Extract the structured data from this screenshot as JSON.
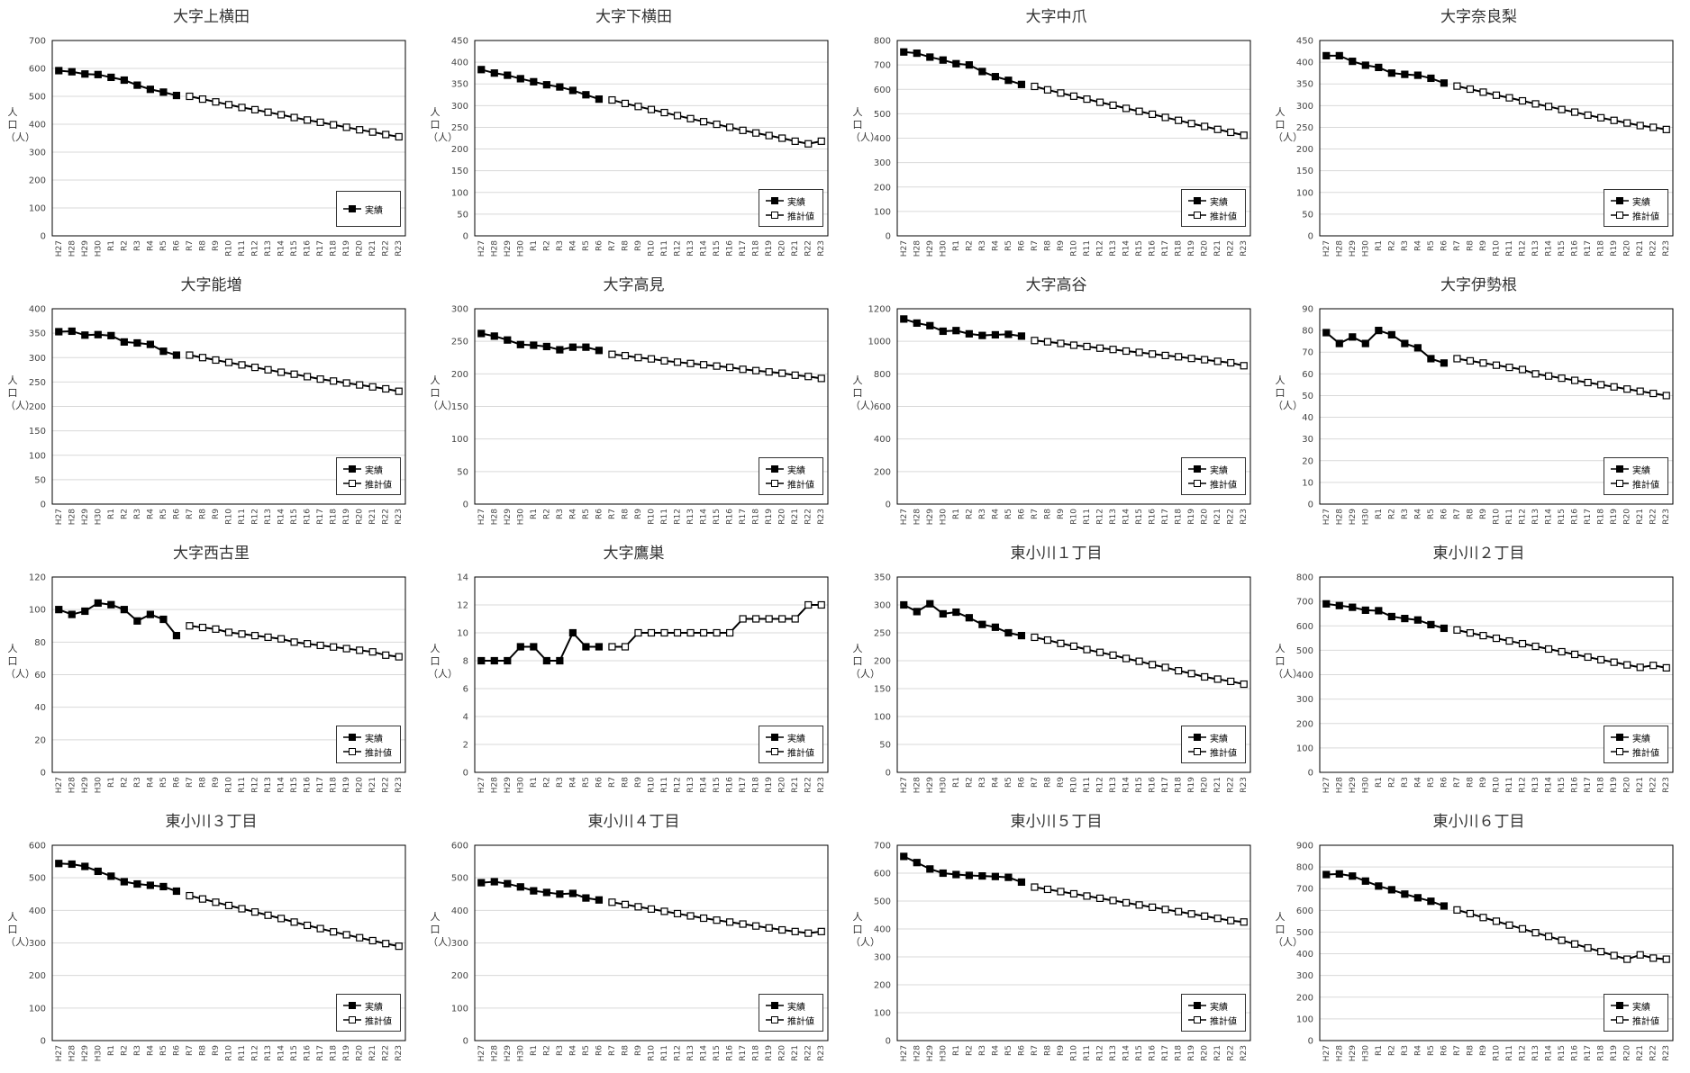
{
  "y_axis_label": "人口（人）",
  "legend": {
    "actual": "実績",
    "forecast": "推計値"
  },
  "categories": [
    "H27",
    "H28",
    "H29",
    "H30",
    "R1",
    "R2",
    "R3",
    "R4",
    "R5",
    "R6",
    "R7",
    "R8",
    "R9",
    "R10",
    "R11",
    "R12",
    "R13",
    "R14",
    "R15",
    "R16",
    "R17",
    "R18",
    "R19",
    "R20",
    "R21",
    "R22",
    "R23"
  ],
  "chart_data": [
    {
      "type": "line",
      "title": "大字上横田",
      "ylim": [
        0,
        700
      ],
      "ystep": 100,
      "legend_items": 1,
      "series": [
        {
          "name": "実績",
          "x_start": 0,
          "values": [
            592,
            588,
            580,
            578,
            568,
            558,
            540,
            525,
            515,
            503
          ]
        },
        {
          "name": "推計値",
          "x_start": 10,
          "values": [
            500,
            490,
            480,
            470,
            460,
            452,
            443,
            434,
            424,
            415,
            407,
            398,
            389,
            380,
            372,
            363,
            355
          ]
        }
      ]
    },
    {
      "type": "line",
      "title": "大字下横田",
      "ylim": [
        0,
        450
      ],
      "ystep": 50,
      "legend_items": 2,
      "series": [
        {
          "name": "実績",
          "x_start": 0,
          "values": [
            383,
            375,
            370,
            362,
            355,
            348,
            343,
            335,
            325,
            315
          ]
        },
        {
          "name": "推計値",
          "x_start": 10,
          "values": [
            313,
            305,
            298,
            291,
            284,
            277,
            270,
            263,
            257,
            250,
            243,
            237,
            231,
            225,
            218,
            212,
            218
          ]
        }
      ]
    },
    {
      "type": "line",
      "title": "大字中爪",
      "ylim": [
        0,
        800
      ],
      "ystep": 100,
      "legend_items": 2,
      "series": [
        {
          "name": "実績",
          "x_start": 0,
          "values": [
            753,
            748,
            732,
            720,
            705,
            700,
            673,
            652,
            637,
            620
          ]
        },
        {
          "name": "推計値",
          "x_start": 10,
          "values": [
            612,
            598,
            585,
            572,
            560,
            547,
            535,
            522,
            510,
            498,
            485,
            473,
            460,
            448,
            436,
            424,
            412
          ]
        }
      ]
    },
    {
      "type": "line",
      "title": "大字奈良梨",
      "ylim": [
        0,
        450
      ],
      "ystep": 50,
      "legend_items": 2,
      "series": [
        {
          "name": "実績",
          "x_start": 0,
          "values": [
            415,
            415,
            402,
            393,
            388,
            375,
            372,
            370,
            363,
            352
          ]
        },
        {
          "name": "推計値",
          "x_start": 10,
          "values": [
            345,
            338,
            331,
            324,
            318,
            311,
            304,
            298,
            291,
            285,
            278,
            272,
            266,
            260,
            254,
            250,
            245
          ]
        }
      ]
    },
    {
      "type": "line",
      "title": "大字能増",
      "ylim": [
        0,
        400
      ],
      "ystep": 50,
      "legend_items": 2,
      "series": [
        {
          "name": "実績",
          "x_start": 0,
          "values": [
            353,
            354,
            346,
            347,
            345,
            332,
            330,
            327,
            313,
            305
          ]
        },
        {
          "name": "推計値",
          "x_start": 10,
          "values": [
            305,
            300,
            295,
            290,
            285,
            280,
            275,
            270,
            266,
            261,
            256,
            252,
            248,
            244,
            240,
            236,
            231
          ]
        }
      ]
    },
    {
      "type": "line",
      "title": "大字高見",
      "ylim": [
        0,
        300
      ],
      "ystep": 50,
      "legend_items": 2,
      "series": [
        {
          "name": "実績",
          "x_start": 0,
          "values": [
            262,
            258,
            252,
            245,
            244,
            242,
            237,
            241,
            241,
            236
          ]
        },
        {
          "name": "推計値",
          "x_start": 10,
          "values": [
            230,
            228,
            225,
            223,
            220,
            218,
            216,
            214,
            212,
            210,
            207,
            205,
            203,
            201,
            198,
            196,
            193
          ]
        }
      ]
    },
    {
      "type": "line",
      "title": "大字高谷",
      "ylim": [
        0,
        1200
      ],
      "ystep": 200,
      "legend_items": 2,
      "series": [
        {
          "name": "実績",
          "x_start": 0,
          "values": [
            1137,
            1112,
            1096,
            1062,
            1066,
            1046,
            1036,
            1040,
            1043,
            1032
          ]
        },
        {
          "name": "推計値",
          "x_start": 10,
          "values": [
            1005,
            997,
            987,
            976,
            968,
            958,
            950,
            940,
            932,
            922,
            913,
            905,
            895,
            887,
            877,
            868,
            850
          ]
        }
      ]
    },
    {
      "type": "line",
      "title": "大字伊勢根",
      "ylim": [
        0,
        90
      ],
      "ystep": 10,
      "legend_items": 2,
      "series": [
        {
          "name": "実績",
          "x_start": 0,
          "values": [
            79,
            74,
            77,
            74,
            80,
            78,
            74,
            72,
            67,
            65
          ]
        },
        {
          "name": "推計値",
          "x_start": 10,
          "values": [
            67,
            66,
            65,
            64,
            63,
            62,
            60,
            59,
            58,
            57,
            56,
            55,
            54,
            53,
            52,
            51,
            50
          ]
        }
      ]
    },
    {
      "type": "line",
      "title": "大字西古里",
      "ylim": [
        0,
        120
      ],
      "ystep": 20,
      "legend_items": 2,
      "series": [
        {
          "name": "実績",
          "x_start": 0,
          "values": [
            100,
            97,
            99,
            104,
            103,
            100,
            93,
            97,
            94,
            84
          ]
        },
        {
          "name": "推計値",
          "x_start": 10,
          "values": [
            90,
            89,
            88,
            86,
            85,
            84,
            83,
            82,
            80,
            79,
            78,
            77,
            76,
            75,
            74,
            72,
            71
          ]
        }
      ]
    },
    {
      "type": "line",
      "title": "大字鷹巣",
      "ylim": [
        0,
        14
      ],
      "ystep": 2,
      "legend_items": 2,
      "series": [
        {
          "name": "実績",
          "x_start": 0,
          "values": [
            8,
            8,
            8,
            9,
            9,
            8,
            8,
            10,
            9,
            9
          ]
        },
        {
          "name": "推計値",
          "x_start": 10,
          "values": [
            9,
            9,
            10,
            10,
            10,
            10,
            10,
            10,
            10,
            10,
            11,
            11,
            11,
            11,
            11,
            12,
            12
          ]
        }
      ]
    },
    {
      "type": "line",
      "title": "東小川１丁目",
      "ylim": [
        0,
        350
      ],
      "ystep": 50,
      "legend_items": 2,
      "series": [
        {
          "name": "実績",
          "x_start": 0,
          "values": [
            300,
            288,
            302,
            284,
            287,
            277,
            265,
            260,
            250,
            245
          ]
        },
        {
          "name": "推計値",
          "x_start": 10,
          "values": [
            242,
            237,
            231,
            226,
            220,
            215,
            210,
            204,
            199,
            193,
            188,
            182,
            177,
            171,
            167,
            163,
            158
          ]
        }
      ]
    },
    {
      "type": "line",
      "title": "東小川２丁目",
      "ylim": [
        0,
        800
      ],
      "ystep": 100,
      "legend_items": 2,
      "series": [
        {
          "name": "実績",
          "x_start": 0,
          "values": [
            690,
            683,
            676,
            664,
            662,
            638,
            630,
            624,
            605,
            590
          ]
        },
        {
          "name": "推計値",
          "x_start": 10,
          "values": [
            583,
            571,
            560,
            549,
            538,
            527,
            516,
            505,
            494,
            483,
            472,
            461,
            451,
            440,
            430,
            438,
            428
          ]
        }
      ]
    },
    {
      "type": "line",
      "title": "東小川３丁目",
      "ylim": [
        0,
        600
      ],
      "ystep": 100,
      "legend_items": 2,
      "series": [
        {
          "name": "実績",
          "x_start": 0,
          "values": [
            544,
            542,
            535,
            520,
            505,
            488,
            481,
            477,
            473,
            459
          ]
        },
        {
          "name": "推計値",
          "x_start": 10,
          "values": [
            445,
            435,
            425,
            415,
            405,
            395,
            385,
            375,
            364,
            354,
            344,
            334,
            325,
            316,
            307,
            298,
            290
          ]
        }
      ]
    },
    {
      "type": "line",
      "title": "東小川４丁目",
      "ylim": [
        0,
        600
      ],
      "ystep": 100,
      "legend_items": 2,
      "series": [
        {
          "name": "実績",
          "x_start": 0,
          "values": [
            485,
            488,
            482,
            472,
            460,
            455,
            450,
            452,
            438,
            432
          ]
        },
        {
          "name": "推計値",
          "x_start": 10,
          "values": [
            425,
            418,
            411,
            404,
            397,
            390,
            383,
            376,
            370,
            364,
            358,
            352,
            346,
            340,
            335,
            330,
            335
          ]
        }
      ]
    },
    {
      "type": "line",
      "title": "東小川５丁目",
      "ylim": [
        0,
        700
      ],
      "ystep": 100,
      "legend_items": 2,
      "series": [
        {
          "name": "実績",
          "x_start": 0,
          "values": [
            660,
            638,
            615,
            600,
            595,
            592,
            590,
            588,
            585,
            568
          ]
        },
        {
          "name": "推計値",
          "x_start": 10,
          "values": [
            550,
            542,
            534,
            526,
            518,
            510,
            502,
            494,
            486,
            478,
            470,
            462,
            454,
            446,
            438,
            430,
            425
          ]
        }
      ]
    },
    {
      "type": "line",
      "title": "東小川６丁目",
      "ylim": [
        0,
        900
      ],
      "ystep": 100,
      "legend_items": 2,
      "series": [
        {
          "name": "実績",
          "x_start": 0,
          "values": [
            765,
            768,
            758,
            735,
            712,
            695,
            675,
            658,
            642,
            620
          ]
        },
        {
          "name": "推計値",
          "x_start": 10,
          "values": [
            602,
            585,
            567,
            550,
            532,
            515,
            497,
            480,
            462,
            445,
            427,
            410,
            392,
            375,
            395,
            380,
            375
          ]
        }
      ]
    }
  ]
}
